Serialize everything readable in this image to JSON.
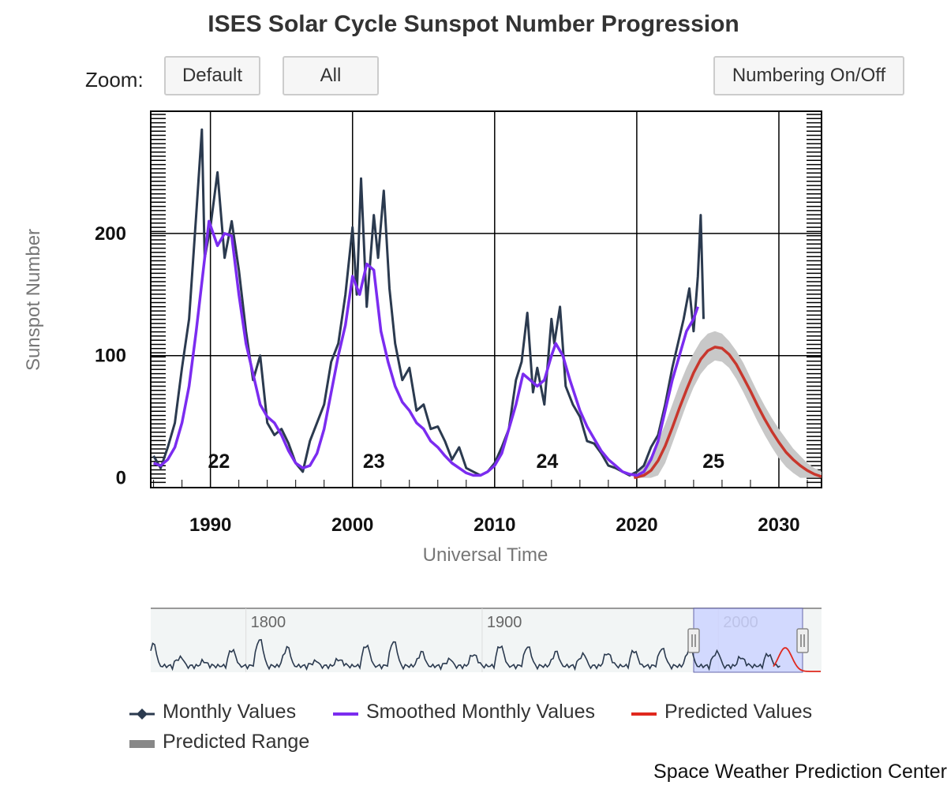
{
  "title": "ISES Solar Cycle Sunspot Number Progression",
  "zoom": {
    "label": "Zoom:",
    "default_label": "Default",
    "all_label": "All"
  },
  "numbering_label": "Numbering On/Off",
  "credit": "Space Weather Prediction Center",
  "legend": {
    "monthly": "Monthly Values",
    "smoothed": "Smoothed Monthly Values",
    "predicted": "Predicted Values",
    "range": "Predicted Range"
  },
  "colors": {
    "monthly": "#2b3a4f",
    "smoothed": "#7b2cf0",
    "predicted": "#c8372d",
    "range": "#c8c8c8",
    "navigator_mask": "#ccd3ff"
  },
  "chart_data": {
    "type": "line",
    "title": "ISES Solar Cycle Sunspot Number Progression",
    "xlabel": "Universal Time",
    "ylabel": "Sunspot Number",
    "xlim": [
      1985.8,
      2033.0
    ],
    "ylim": [
      -8,
      300
    ],
    "x_ticks": [
      1990,
      2000,
      2010,
      2020,
      2030
    ],
    "y_ticks": [
      0,
      100,
      200
    ],
    "grid": true,
    "cycle_labels": [
      {
        "label": "22",
        "x": 1990.6,
        "y": 8
      },
      {
        "label": "23",
        "x": 2001.5,
        "y": 8
      },
      {
        "label": "24",
        "x": 2013.7,
        "y": 8
      },
      {
        "label": "25",
        "x": 2025.4,
        "y": 8
      }
    ],
    "series": [
      {
        "name": "Monthly Values",
        "x": [
          1986.0,
          1986.5,
          1987.0,
          1987.5,
          1988.0,
          1988.5,
          1989.0,
          1989.4,
          1989.6,
          1990.0,
          1990.5,
          1991.0,
          1991.5,
          1992.0,
          1992.5,
          1993.0,
          1993.5,
          1994.0,
          1994.5,
          1995.0,
          1995.5,
          1996.0,
          1996.5,
          1997.0,
          1997.5,
          1998.0,
          1998.5,
          1999.0,
          1999.5,
          2000.0,
          2000.3,
          2000.6,
          2001.0,
          2001.5,
          2001.8,
          2002.2,
          2002.6,
          2003.0,
          2003.5,
          2004.0,
          2004.5,
          2005.0,
          2005.5,
          2006.0,
          2006.5,
          2007.0,
          2007.5,
          2008.0,
          2008.5,
          2009.0,
          2009.5,
          2010.0,
          2010.5,
          2011.0,
          2011.5,
          2011.9,
          2012.3,
          2012.7,
          2013.0,
          2013.5,
          2014.0,
          2014.2,
          2014.6,
          2015.0,
          2015.5,
          2016.0,
          2016.5,
          2017.0,
          2017.5,
          2018.0,
          2018.5,
          2019.0,
          2019.5,
          2020.0,
          2020.5,
          2021.0,
          2021.5,
          2022.0,
          2022.5,
          2022.9,
          2023.3,
          2023.7,
          2024.0,
          2024.3,
          2024.5,
          2024.7
        ],
        "values": [
          18,
          8,
          25,
          45,
          90,
          130,
          215,
          285,
          180,
          205,
          250,
          180,
          210,
          170,
          120,
          80,
          100,
          45,
          35,
          40,
          28,
          12,
          5,
          30,
          45,
          60,
          95,
          110,
          150,
          205,
          150,
          245,
          140,
          215,
          180,
          235,
          155,
          110,
          80,
          90,
          55,
          60,
          40,
          42,
          30,
          15,
          25,
          8,
          5,
          2,
          5,
          12,
          25,
          40,
          80,
          95,
          135,
          70,
          90,
          60,
          130,
          110,
          140,
          75,
          60,
          50,
          30,
          28,
          20,
          10,
          8,
          5,
          2,
          5,
          10,
          25,
          35,
          60,
          90,
          110,
          130,
          155,
          120,
          165,
          215,
          130
        ]
      },
      {
        "name": "Smoothed Monthly Values",
        "x": [
          1986.0,
          1986.5,
          1987.0,
          1987.5,
          1988.0,
          1988.5,
          1989.0,
          1989.5,
          1989.9,
          1990.5,
          1991.0,
          1991.5,
          1992.0,
          1992.5,
          1993.0,
          1993.5,
          1994.0,
          1994.5,
          1995.0,
          1995.5,
          1996.0,
          1996.5,
          1997.0,
          1997.5,
          1998.0,
          1998.5,
          1999.0,
          1999.5,
          2000.0,
          2000.5,
          2001.0,
          2001.5,
          2002.0,
          2002.5,
          2003.0,
          2003.5,
          2004.0,
          2004.5,
          2005.0,
          2005.5,
          2006.0,
          2006.5,
          2007.0,
          2007.5,
          2008.0,
          2008.5,
          2009.0,
          2009.5,
          2010.0,
          2010.5,
          2011.0,
          2011.5,
          2012.0,
          2012.5,
          2013.0,
          2013.5,
          2014.0,
          2014.3,
          2014.8,
          2015.3,
          2016.0,
          2016.5,
          2017.0,
          2017.5,
          2018.0,
          2018.5,
          2019.0,
          2019.5,
          2020.0,
          2020.5,
          2021.0,
          2021.5,
          2022.0,
          2022.5,
          2023.0,
          2023.5,
          2024.0,
          2024.3
        ],
        "values": [
          12,
          10,
          15,
          25,
          45,
          75,
          120,
          170,
          210,
          190,
          200,
          198,
          150,
          110,
          85,
          60,
          50,
          45,
          35,
          22,
          12,
          8,
          10,
          20,
          40,
          70,
          100,
          125,
          165,
          150,
          175,
          170,
          120,
          95,
          75,
          62,
          55,
          45,
          40,
          30,
          25,
          18,
          12,
          8,
          4,
          2,
          2,
          5,
          10,
          20,
          40,
          60,
          85,
          80,
          75,
          80,
          100,
          110,
          100,
          80,
          55,
          42,
          32,
          22,
          15,
          10,
          5,
          3,
          2,
          5,
          15,
          30,
          55,
          80,
          100,
          120,
          130,
          140
        ]
      },
      {
        "name": "Predicted Values",
        "x": [
          2019.8,
          2020.5,
          2021.0,
          2021.5,
          2022.0,
          2022.5,
          2023.0,
          2023.5,
          2024.0,
          2024.5,
          2025.0,
          2025.5,
          2026.0,
          2026.5,
          2027.0,
          2027.5,
          2028.0,
          2028.5,
          2029.0,
          2029.5,
          2030.0,
          2030.5,
          2031.0,
          2031.5,
          2032.0,
          2032.5,
          2033.0
        ],
        "values": [
          0,
          2,
          6,
          14,
          26,
          41,
          57,
          72,
          86,
          97,
          104,
          107,
          106,
          101,
          93,
          82,
          71,
          59,
          48,
          38,
          29,
          21,
          15,
          10,
          6,
          3,
          1
        ]
      },
      {
        "name": "Predicted Range",
        "x": [
          2020.0,
          2020.5,
          2021.0,
          2021.5,
          2022.0,
          2022.5,
          2023.0,
          2023.5,
          2024.0,
          2024.5,
          2025.0,
          2025.5,
          2026.0,
          2026.5,
          2027.0,
          2027.5,
          2028.0,
          2028.5,
          2029.0,
          2029.5,
          2030.0,
          2030.5,
          2031.0,
          2031.5,
          2032.0,
          2032.5,
          2033.0
        ],
        "low": [
          0,
          0,
          0,
          2,
          12,
          28,
          44,
          60,
          74,
          85,
          92,
          96,
          95,
          90,
          81,
          70,
          58,
          46,
          35,
          25,
          16,
          9,
          4,
          0,
          0,
          0,
          0
        ],
        "high": [
          5,
          10,
          18,
          30,
          44,
          60,
          76,
          90,
          102,
          112,
          118,
          120,
          118,
          112,
          104,
          94,
          82,
          70,
          59,
          49,
          40,
          32,
          24,
          18,
          12,
          8,
          5
        ]
      }
    ],
    "navigator": {
      "tick_labels": [
        1800,
        1900,
        2000
      ],
      "xlim": [
        1749,
        2033
      ],
      "selected_range": [
        1986,
        2033
      ]
    }
  }
}
